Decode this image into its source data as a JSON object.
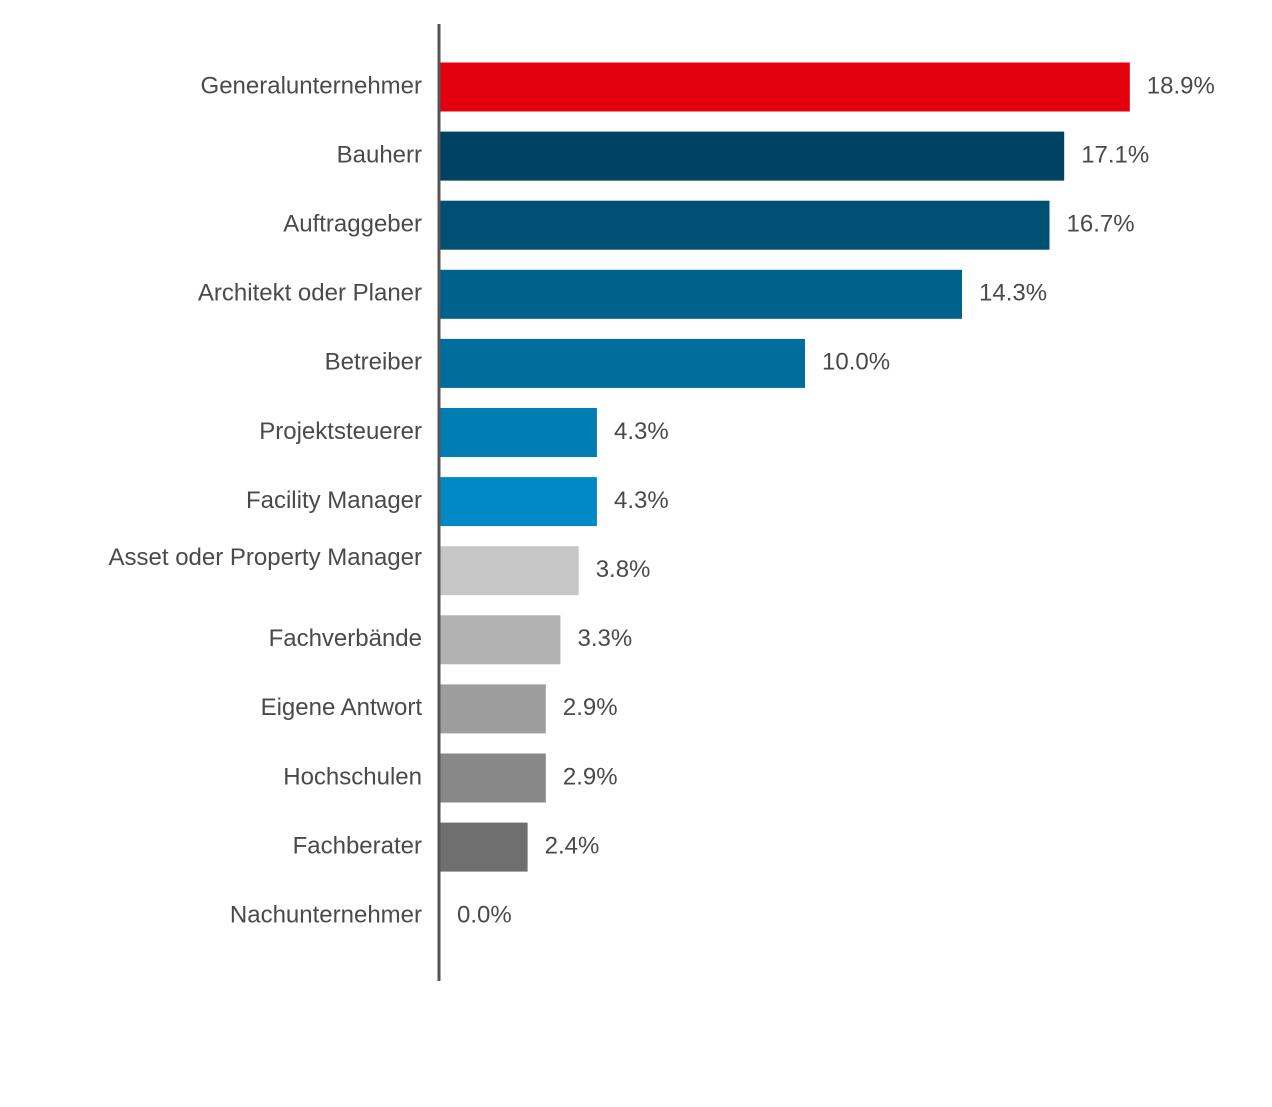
{
  "chart_data": {
    "type": "bar",
    "orientation": "horizontal",
    "title": "",
    "xlabel": "",
    "ylabel": "",
    "grid": false,
    "legend": "none",
    "xlim": [
      0,
      20
    ],
    "categories": [
      "Generalunternehmer",
      "Bauherr",
      "Auftraggeber",
      "Architekt oder Planer",
      "Betreiber",
      "Projektsteuerer",
      "Facility Manager",
      "Asset oder Property Manager",
      "Fachverbände",
      "Eigene Antwort",
      "Hochschulen",
      "Fachberater",
      "Nachunternehmer"
    ],
    "values": [
      18.9,
      17.1,
      16.7,
      14.3,
      10.0,
      4.3,
      4.3,
      3.8,
      3.3,
      2.9,
      2.9,
      2.4,
      0.0
    ],
    "value_labels": [
      "18.9%",
      "17.1%",
      "16.7%",
      "14.3%",
      "10.0%",
      "4.3%",
      "4.3%",
      "3.8%",
      "3.3%",
      "2.9%",
      "2.9%",
      "2.4%",
      "0.0%"
    ],
    "colors": [
      "#e2000f",
      "#004262",
      "#005073",
      "#00628c",
      "#006e9c",
      "#007db2",
      "#0089c4",
      "#c6c6c6",
      "#b2b2b2",
      "#9d9d9d",
      "#878787",
      "#6f6f6f",
      "#5a5a5a"
    ],
    "axis_color": "#555555",
    "text_color": "#4a4a4a"
  }
}
